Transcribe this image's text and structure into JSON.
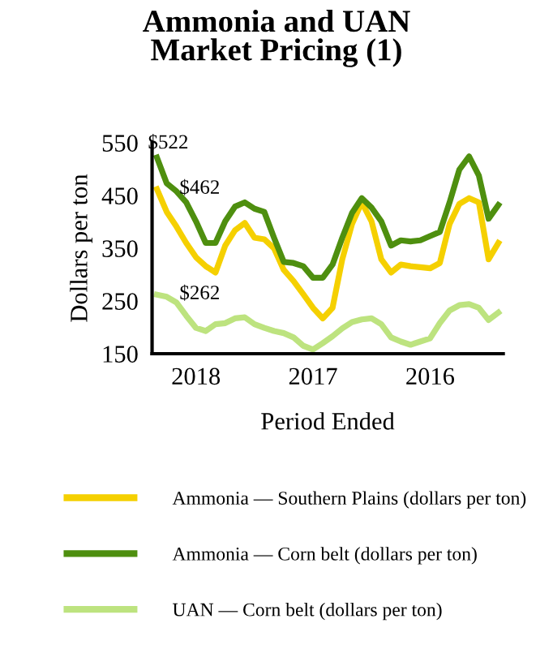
{
  "chart_data": {
    "type": "line",
    "title": "Ammonia and UAN\nMarket Pricing (1)",
    "xlabel": "Period Ended",
    "ylabel": "Dollars per ton",
    "categories": [
      null,
      null,
      null,
      null,
      "2018",
      null,
      null,
      null,
      null,
      null,
      null,
      null,
      null,
      null,
      null,
      null,
      "2017",
      null,
      null,
      null,
      null,
      null,
      null,
      null,
      null,
      null,
      null,
      null,
      "2016",
      null,
      null,
      null,
      null,
      null,
      null,
      null
    ],
    "series": [
      {
        "name": "Ammonia — Southern Plains (dollars per ton)",
        "color": "#f5d000",
        "values": [
          462,
          419,
          391,
          360,
          333,
          316,
          304,
          355,
          384,
          398,
          370,
          367,
          350,
          309,
          288,
          263,
          237,
          217,
          237,
          329,
          396,
          437,
          401,
          329,
          304,
          319,
          316,
          314,
          312,
          322,
          396,
          434,
          445,
          437,
          329,
          360
        ]
      },
      {
        "name": "Ammonia — Corn belt (dollars per ton)",
        "color": "#4e8f0f",
        "values": [
          522,
          473,
          458,
          437,
          401,
          360,
          360,
          401,
          429,
          437,
          425,
          419,
          370,
          324,
          322,
          316,
          294,
          294,
          319,
          370,
          417,
          445,
          427,
          401,
          355,
          365,
          363,
          365,
          373,
          381,
          437,
          499,
          524,
          488,
          406,
          432
        ]
      },
      {
        "name": "UAN — Corn belt (dollars per ton)",
        "color": "#bde37f",
        "values": [
          262,
          258,
          247,
          222,
          199,
          193,
          206,
          208,
          217,
          219,
          206,
          199,
          193,
          189,
          181,
          165,
          158,
          170,
          183,
          198,
          210,
          215,
          217,
          206,
          181,
          173,
          167,
          173,
          179,
          208,
          232,
          242,
          244,
          237,
          214,
          228
        ]
      }
    ],
    "annotations": [
      "$462",
      "$522",
      "$262"
    ],
    "ylim": [
      150,
      550
    ],
    "yticks": [
      150,
      250,
      350,
      450,
      550
    ],
    "grid": false,
    "legend": "bottom",
    "marker": "none",
    "line_style": "solid"
  }
}
